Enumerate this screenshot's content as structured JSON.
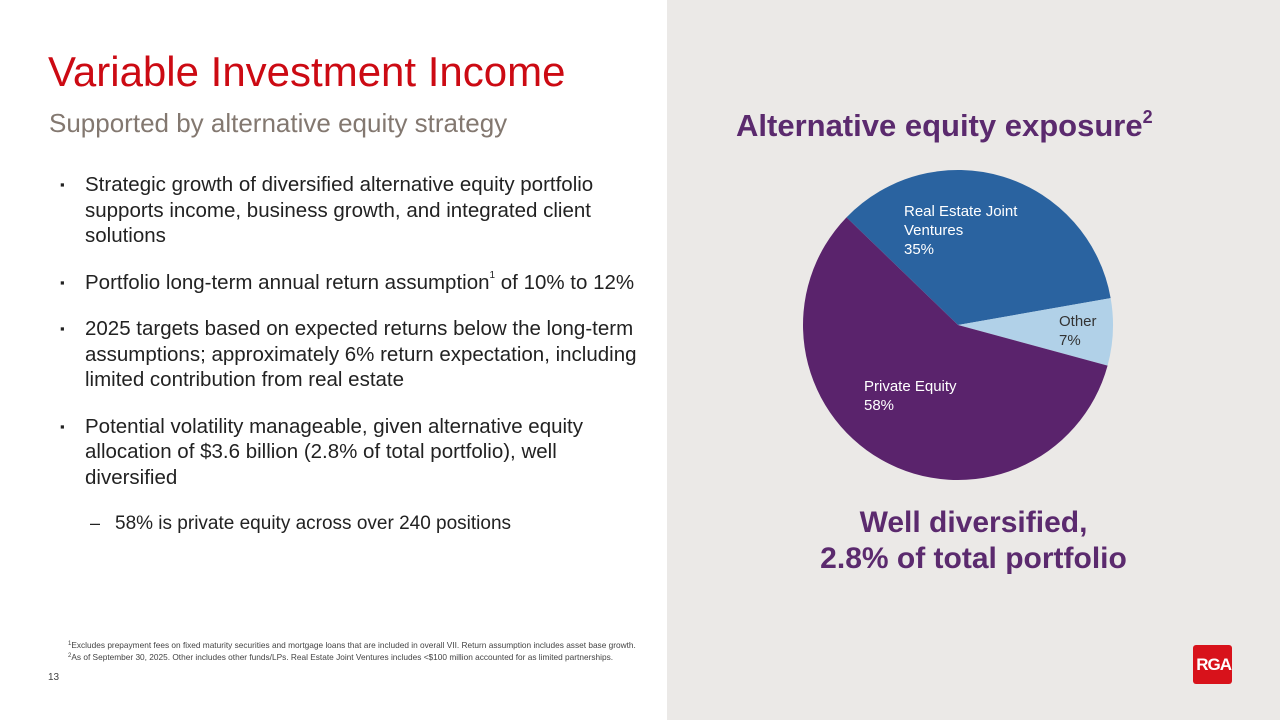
{
  "title": "Variable Investment Income",
  "subtitle": "Supported by alternative equity strategy",
  "bullets": [
    {
      "text": "Strategic growth of diversified alternative equity portfolio supports income, business growth, and integrated client solutions"
    },
    {
      "text": "Portfolio long-term annual return assumption",
      "sup": "1",
      "after": " of 10% to 12%"
    },
    {
      "text": "2025 targets based on expected returns below the long-term assumptions; approximately 6% return expectation, including limited contribution from real estate"
    },
    {
      "text": "Potential volatility manageable, given alternative equity allocation of $3.6 billion (2.8% of total portfolio), well diversified"
    },
    {
      "text": "58% is private equity across over 240 positions"
    }
  ],
  "markers": {
    "bullet": "▪",
    "dash": "–"
  },
  "footnotes": [
    {
      "sup": "1",
      "text": "Excludes prepayment fees on fixed maturity securities and mortgage loans that are included in overall VII. Return assumption includes asset base growth."
    },
    {
      "sup": "2",
      "text": "As of September 30, 2025. Other includes other funds/LPs. Real Estate Joint Ventures includes <$100 million accounted for as limited partnerships."
    }
  ],
  "page_number": "13",
  "chart_title": "Alternative equity exposure",
  "chart_title_sup": "2",
  "tagline_1": "Well diversified,",
  "tagline_2": "2.8% of total portfolio",
  "logo": "RGA",
  "chart_data": {
    "type": "pie",
    "title": "Alternative equity exposure",
    "slices": [
      {
        "label_1": "Real Estate Joint",
        "label_2": "Ventures",
        "value_label": "35%",
        "value": 35,
        "color": "#2a63a0"
      },
      {
        "label_1": "Other",
        "label_2": "",
        "value_label": "7%",
        "value": 7,
        "color": "#b1d1e8"
      },
      {
        "label_1": "Private Equity",
        "label_2": "",
        "value_label": "58%",
        "value": 58,
        "color": "#5a236c"
      }
    ]
  }
}
